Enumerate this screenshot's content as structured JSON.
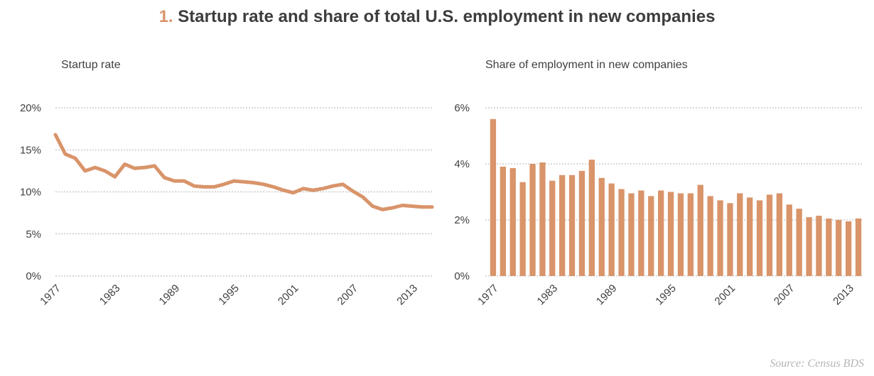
{
  "title": {
    "number": "1.",
    "text": "Startup rate and share of total U.S. employment in new companies"
  },
  "source": "Source: Census BDS",
  "colors": {
    "series": "#d9946a"
  },
  "chart_data": [
    {
      "type": "line",
      "title": "Startup rate",
      "x": [
        1977,
        1978,
        1979,
        1980,
        1981,
        1982,
        1983,
        1984,
        1985,
        1986,
        1987,
        1988,
        1989,
        1990,
        1991,
        1992,
        1993,
        1994,
        1995,
        1996,
        1997,
        1998,
        1999,
        2000,
        2001,
        2002,
        2003,
        2004,
        2005,
        2006,
        2007,
        2008,
        2009,
        2010,
        2011,
        2012,
        2013,
        2014,
        2015
      ],
      "values": [
        16.8,
        14.5,
        14.0,
        12.5,
        12.9,
        12.5,
        11.8,
        13.3,
        12.8,
        12.9,
        13.1,
        11.7,
        11.3,
        11.3,
        10.7,
        10.6,
        10.6,
        10.9,
        11.3,
        11.2,
        11.1,
        10.9,
        10.6,
        10.2,
        9.9,
        10.4,
        10.2,
        10.4,
        10.7,
        10.9,
        10.1,
        9.4,
        8.3,
        7.9,
        8.1,
        8.4,
        8.3,
        8.2,
        8.2
      ],
      "ylim": [
        0,
        20
      ],
      "yticks": [
        0,
        5,
        10,
        15,
        20
      ],
      "ytick_labels": [
        "0%",
        "5%",
        "10%",
        "15%",
        "20%"
      ],
      "xticks": [
        1977,
        1983,
        1989,
        1995,
        2001,
        2007,
        2013
      ],
      "xtick_labels": [
        "1977",
        "1983",
        "1989",
        "1995",
        "2001",
        "2007",
        "2013"
      ],
      "xlim": [
        1977,
        2015
      ],
      "grid": true
    },
    {
      "type": "bar",
      "title": "Share of employment in new companies",
      "x": [
        1977,
        1978,
        1979,
        1980,
        1981,
        1982,
        1983,
        1984,
        1985,
        1986,
        1987,
        1988,
        1989,
        1990,
        1991,
        1992,
        1993,
        1994,
        1995,
        1996,
        1997,
        1998,
        1999,
        2000,
        2001,
        2002,
        2003,
        2004,
        2005,
        2006,
        2007,
        2008,
        2009,
        2010,
        2011,
        2012,
        2013,
        2014
      ],
      "values": [
        5.6,
        3.9,
        3.85,
        3.35,
        4.0,
        4.05,
        3.4,
        3.6,
        3.6,
        3.75,
        4.15,
        3.5,
        3.3,
        3.1,
        2.95,
        3.05,
        2.85,
        3.05,
        3.0,
        2.95,
        2.95,
        3.25,
        2.85,
        2.7,
        2.6,
        2.95,
        2.8,
        2.7,
        2.9,
        2.95,
        2.55,
        2.4,
        2.1,
        2.15,
        2.05,
        2.0,
        1.95,
        2.05
      ],
      "ylim": [
        0,
        6
      ],
      "yticks": [
        0,
        2,
        4,
        6
      ],
      "ytick_labels": [
        "0%",
        "2%",
        "4%",
        "6%"
      ],
      "xticks": [
        1977,
        1983,
        1989,
        1995,
        2001,
        2007,
        2013
      ],
      "xtick_labels": [
        "1977",
        "1983",
        "1989",
        "1995",
        "2001",
        "2007",
        "2013"
      ],
      "grid": true
    }
  ]
}
